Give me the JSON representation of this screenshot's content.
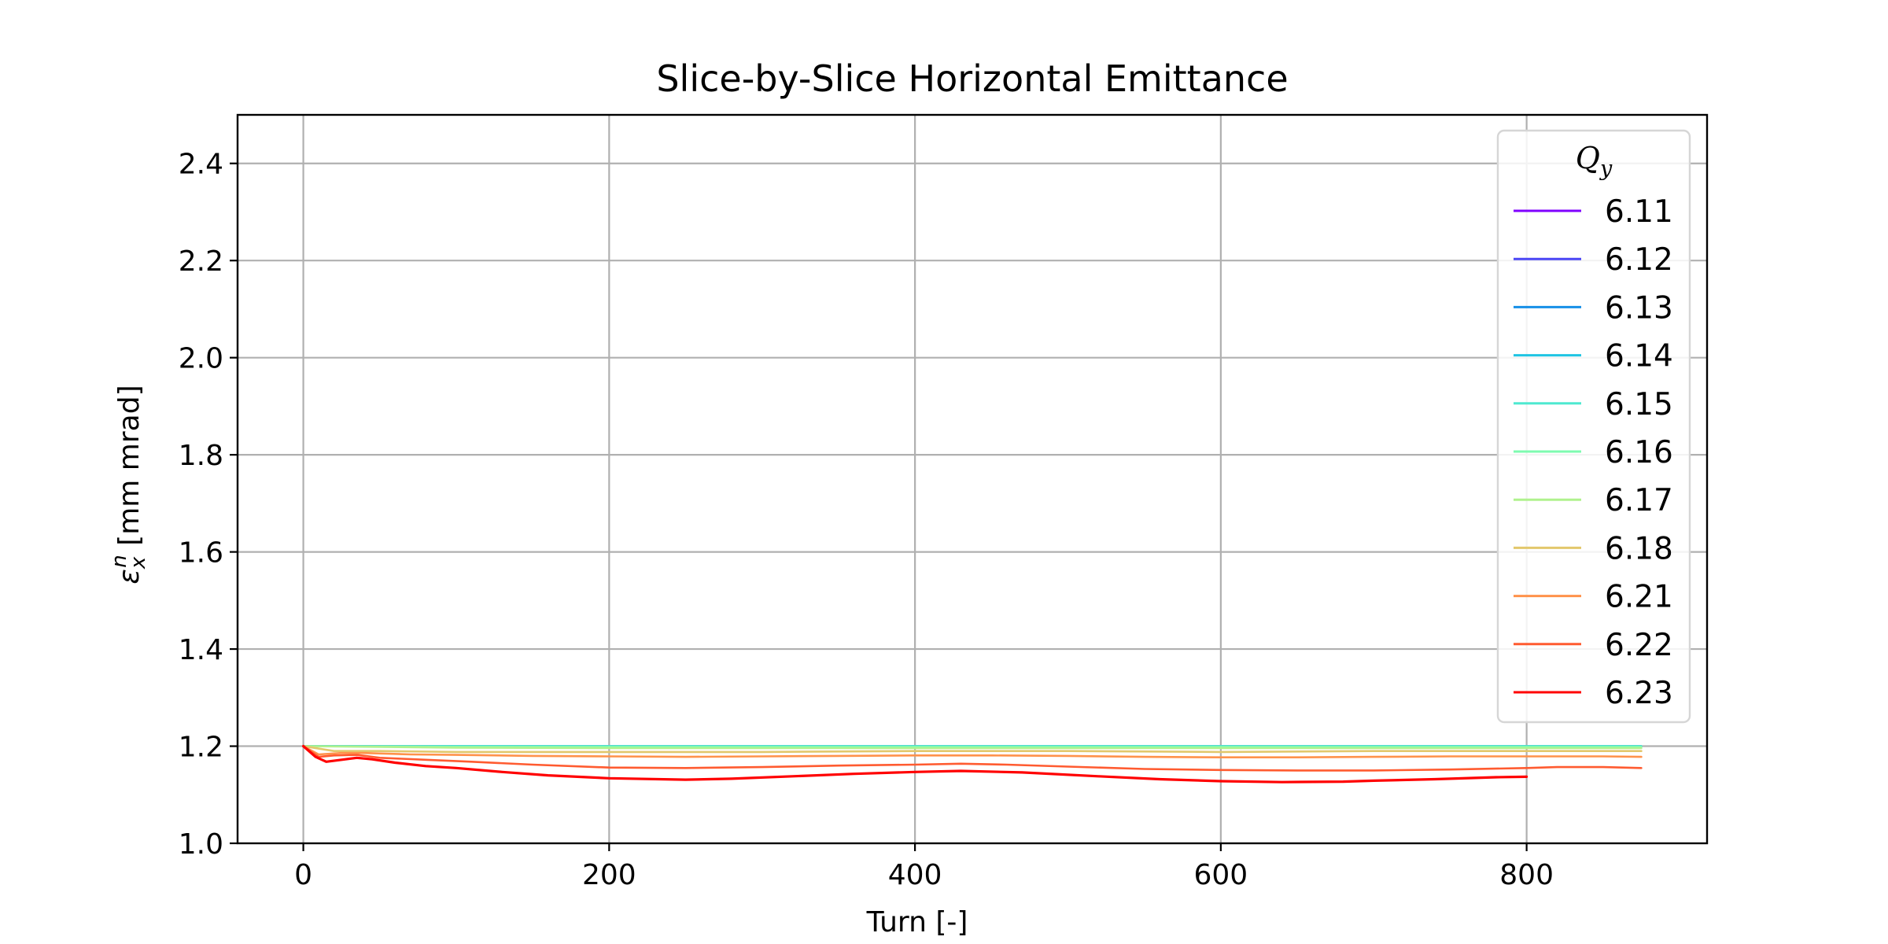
{
  "chart_data": {
    "type": "line",
    "title": "Slice-by-Slice Horizontal Emittance",
    "xlabel": "Turn [-]",
    "ylabel": "ε_x^n [mm mrad]",
    "ylabel_parts": {
      "symbol": "ε",
      "sub": "x",
      "sup": "n",
      "unit": " [mm mrad]"
    },
    "xlim": [
      -43,
      918
    ],
    "ylim": [
      1.0,
      2.5
    ],
    "xticks": [
      0,
      200,
      400,
      600,
      800
    ],
    "yticks": [
      1.0,
      1.2,
      1.4,
      1.6,
      1.8,
      2.0,
      2.2,
      2.4
    ],
    "grid": true,
    "legend": {
      "title": "Q_y",
      "title_parts": {
        "main": "Q",
        "sub": "y"
      },
      "placement": "top-right"
    },
    "series": [
      {
        "name": "6.11",
        "color": "#8000ff",
        "x": [
          0,
          100,
          200,
          300,
          400,
          500,
          600,
          700,
          800,
          875
        ],
        "y": [
          1.2,
          1.2,
          1.2,
          1.2,
          1.2,
          1.2,
          1.2,
          1.2,
          1.2,
          1.2
        ]
      },
      {
        "name": "6.12",
        "color": "#4b46f5",
        "x": [
          0,
          100,
          200,
          300,
          400,
          500,
          600,
          700,
          800,
          875
        ],
        "y": [
          1.2,
          1.2,
          1.2,
          1.2,
          1.2,
          1.2,
          1.2,
          1.2,
          1.2,
          1.2
        ]
      },
      {
        "name": "6.13",
        "color": "#168fe7",
        "x": [
          0,
          100,
          200,
          300,
          400,
          500,
          600,
          700,
          800,
          875
        ],
        "y": [
          1.2,
          1.2,
          1.2,
          1.2,
          1.2,
          1.2,
          1.2,
          1.2,
          1.2,
          1.2
        ]
      },
      {
        "name": "6.14",
        "color": "#1fc4e3",
        "x": [
          0,
          100,
          200,
          300,
          400,
          500,
          600,
          700,
          800,
          875
        ],
        "y": [
          1.2,
          1.2,
          1.2,
          1.2,
          1.2,
          1.2,
          1.2,
          1.2,
          1.2,
          1.2
        ]
      },
      {
        "name": "6.15",
        "color": "#4ee9d0",
        "x": [
          0,
          100,
          200,
          300,
          400,
          500,
          600,
          700,
          800,
          875
        ],
        "y": [
          1.2,
          1.2,
          1.2,
          1.2,
          1.2,
          1.2,
          1.2,
          1.2,
          1.2,
          1.2
        ]
      },
      {
        "name": "6.16",
        "color": "#7efbb0",
        "x": [
          0,
          100,
          200,
          300,
          400,
          500,
          600,
          700,
          800,
          875
        ],
        "y": [
          1.2,
          1.199,
          1.199,
          1.199,
          1.199,
          1.199,
          1.199,
          1.199,
          1.199,
          1.199
        ]
      },
      {
        "name": "6.17",
        "color": "#b0f28e",
        "x": [
          0,
          100,
          200,
          300,
          400,
          500,
          600,
          700,
          800,
          875
        ],
        "y": [
          1.2,
          1.197,
          1.196,
          1.196,
          1.196,
          1.196,
          1.196,
          1.196,
          1.196,
          1.196
        ]
      },
      {
        "name": "6.18",
        "color": "#e2c86c",
        "x": [
          0,
          20,
          50,
          100,
          200,
          300,
          400,
          500,
          600,
          700,
          800,
          875
        ],
        "y": [
          1.2,
          1.19,
          1.19,
          1.188,
          1.188,
          1.188,
          1.19,
          1.19,
          1.188,
          1.19,
          1.19,
          1.19
        ]
      },
      {
        "name": "6.21",
        "color": "#ff924b",
        "x": [
          0,
          10,
          25,
          40,
          70,
          100,
          150,
          200,
          250,
          300,
          350,
          400,
          450,
          500,
          550,
          600,
          650,
          700,
          750,
          800,
          850,
          875
        ],
        "y": [
          1.2,
          1.183,
          1.186,
          1.186,
          1.183,
          1.182,
          1.18,
          1.179,
          1.178,
          1.179,
          1.18,
          1.181,
          1.181,
          1.18,
          1.178,
          1.177,
          1.177,
          1.178,
          1.179,
          1.179,
          1.179,
          1.178
        ]
      },
      {
        "name": "6.22",
        "color": "#ff5b30",
        "x": [
          0,
          10,
          20,
          35,
          50,
          80,
          110,
          150,
          200,
          250,
          300,
          350,
          400,
          430,
          460,
          500,
          550,
          600,
          650,
          700,
          750,
          800,
          820,
          850,
          875
        ],
        "y": [
          1.2,
          1.178,
          1.181,
          1.182,
          1.176,
          1.172,
          1.168,
          1.162,
          1.156,
          1.155,
          1.157,
          1.16,
          1.162,
          1.164,
          1.162,
          1.158,
          1.153,
          1.151,
          1.15,
          1.15,
          1.152,
          1.155,
          1.157,
          1.157,
          1.155
        ]
      },
      {
        "name": "6.23",
        "color": "#ff0000",
        "x": [
          0,
          8,
          15,
          25,
          35,
          45,
          60,
          80,
          100,
          130,
          160,
          200,
          250,
          280,
          320,
          360,
          400,
          430,
          470,
          520,
          560,
          600,
          640,
          680,
          700,
          740,
          780,
          800
        ],
        "y": [
          1.2,
          1.178,
          1.168,
          1.172,
          1.176,
          1.173,
          1.166,
          1.159,
          1.155,
          1.147,
          1.14,
          1.134,
          1.131,
          1.133,
          1.138,
          1.143,
          1.147,
          1.149,
          1.146,
          1.138,
          1.132,
          1.128,
          1.126,
          1.127,
          1.129,
          1.132,
          1.136,
          1.137
        ]
      }
    ]
  }
}
